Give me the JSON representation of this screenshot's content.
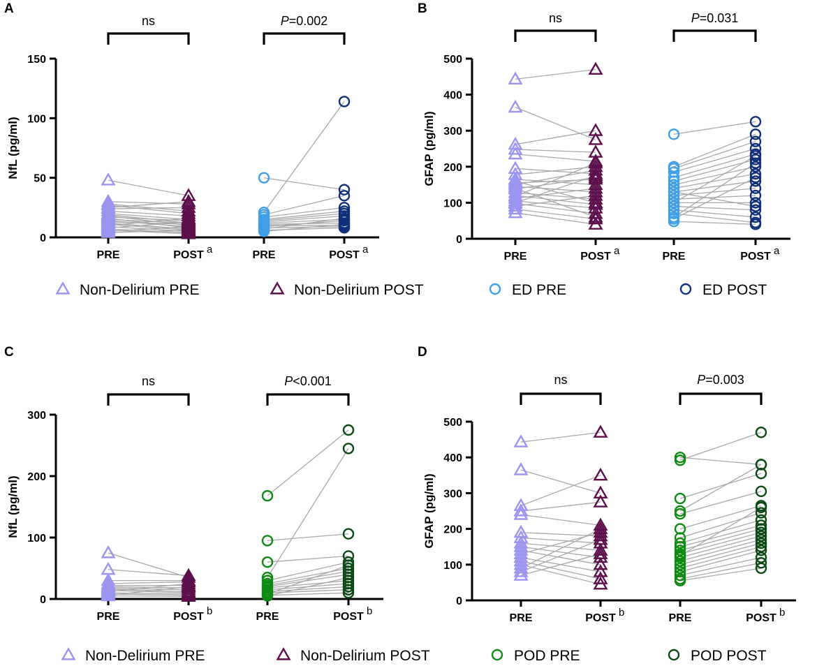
{
  "figure": "4-panel paired before/after scatter",
  "colors": {
    "nd_pre": "#9b95f0",
    "nd_post": "#5c0f4b",
    "ed_pre": "#3f9fe8",
    "ed_post": "#0f2f78",
    "pod_pre": "#0e8a12",
    "pod_post": "#0a4a12",
    "line": "#a9a9a9",
    "axis": "#000000"
  },
  "legends": [
    {
      "items": [
        {
          "label": "Non-Delirium PRE",
          "marker": "triangle",
          "color": "#9b95f0"
        },
        {
          "label": "Non-Delirium POST",
          "marker": "triangle",
          "color": "#5c0f4b"
        },
        {
          "label": "ED PRE",
          "marker": "circle",
          "color": "#3f9fe8"
        },
        {
          "label": "ED POST",
          "marker": "circle",
          "color": "#0f2f78"
        }
      ]
    },
    {
      "items": [
        {
          "label": "Non-Delirium PRE",
          "marker": "triangle",
          "color": "#9b95f0"
        },
        {
          "label": "Non-Delirium POST",
          "marker": "triangle",
          "color": "#5c0f4b"
        },
        {
          "label": "POD PRE",
          "marker": "circle",
          "color": "#0e8a12"
        },
        {
          "label": "POD POST",
          "marker": "circle",
          "color": "#0a4a12"
        }
      ]
    }
  ],
  "chart_data": [
    {
      "panel": "A",
      "type": "scatter",
      "ylabel": "NfL (pg/ml)",
      "ylim": [
        0,
        150
      ],
      "yticks": [
        0,
        50,
        100,
        150
      ],
      "categories": [
        "PRE",
        "POST",
        "PRE",
        "POST"
      ],
      "category_superscripts": [
        "",
        "a",
        "",
        "a"
      ],
      "groups": [
        {
          "name": "Non-Delirium",
          "brackets_label": "ns",
          "pre_color": "#9b95f0",
          "post_color": "#5c0f4b",
          "marker": "triangle",
          "pairs": [
            [
              48,
              35
            ],
            [
              30,
              28
            ],
            [
              28,
              22
            ],
            [
              27,
              20
            ],
            [
              25,
              30
            ],
            [
              24,
              25
            ],
            [
              22,
              18
            ],
            [
              20,
              15
            ],
            [
              19,
              12
            ],
            [
              18,
              10
            ],
            [
              17,
              14
            ],
            [
              16,
              8
            ],
            [
              15,
              12
            ],
            [
              14,
              9
            ],
            [
              13,
              11
            ],
            [
              12,
              7
            ],
            [
              11,
              6
            ],
            [
              10,
              16
            ],
            [
              9,
              5
            ],
            [
              8,
              13
            ],
            [
              7,
              4
            ],
            [
              6,
              3
            ],
            [
              5,
              9
            ],
            [
              4,
              6
            ]
          ]
        },
        {
          "name": "ED",
          "brackets_label": "P=0.002",
          "pre_color": "#3f9fe8",
          "post_color": "#0f2f78",
          "marker": "circle",
          "pairs": [
            [
              50,
              40
            ],
            [
              21,
              114
            ],
            [
              19,
              35
            ],
            [
              17,
              25
            ],
            [
              15,
              22
            ],
            [
              14,
              20
            ],
            [
              13,
              18
            ],
            [
              12,
              15
            ],
            [
              11,
              12
            ],
            [
              10,
              10
            ],
            [
              9,
              14
            ],
            [
              8,
              9
            ],
            [
              7,
              16
            ],
            [
              6,
              8
            ],
            [
              5,
              11
            ]
          ]
        }
      ]
    },
    {
      "panel": "B",
      "type": "scatter",
      "ylabel": "GFAP (pg/ml)",
      "ylim": [
        0,
        500
      ],
      "yticks": [
        0,
        100,
        200,
        300,
        400,
        500
      ],
      "categories": [
        "PRE",
        "POST",
        "PRE",
        "POST"
      ],
      "category_superscripts": [
        "",
        "a",
        "",
        "a"
      ],
      "groups": [
        {
          "name": "Non-Delirium",
          "brackets_label": "ns",
          "pre_color": "#9b95f0",
          "post_color": "#5c0f4b",
          "marker": "triangle",
          "pairs": [
            [
              443,
              470
            ],
            [
              365,
              275
            ],
            [
              262,
              300
            ],
            [
              248,
              240
            ],
            [
              235,
              215
            ],
            [
              195,
              180
            ],
            [
              178,
              200
            ],
            [
              165,
              150
            ],
            [
              155,
              165
            ],
            [
              145,
              130
            ],
            [
              138,
              170
            ],
            [
              128,
              110
            ],
            [
              120,
              95
            ],
            [
              112,
              140
            ],
            [
              105,
              85
            ],
            [
              98,
              70
            ],
            [
              90,
              120
            ],
            [
              82,
              55
            ],
            [
              72,
              40
            ],
            [
              150,
              190
            ],
            [
              160,
              100
            ],
            [
              140,
              60
            ],
            [
              118,
              210
            ],
            [
              100,
              175
            ]
          ]
        },
        {
          "name": "ED",
          "brackets_label": "P=0.031",
          "pre_color": "#3f9fe8",
          "post_color": "#0f2f78",
          "marker": "circle",
          "pairs": [
            [
              290,
              325
            ],
            [
              200,
              290
            ],
            [
              195,
              270
            ],
            [
              185,
              250
            ],
            [
              170,
              235
            ],
            [
              160,
              220
            ],
            [
              150,
              200
            ],
            [
              140,
              180
            ],
            [
              130,
              160
            ],
            [
              120,
              140
            ],
            [
              110,
              120
            ],
            [
              100,
              100
            ],
            [
              90,
              80
            ],
            [
              80,
              60
            ],
            [
              70,
              45
            ],
            [
              60,
              210
            ],
            [
              55,
              170
            ],
            [
              48,
              40
            ],
            [
              100,
              230
            ],
            [
              130,
              90
            ]
          ]
        }
      ]
    },
    {
      "panel": "C",
      "type": "scatter",
      "ylabel": "NfL (pg/ml)",
      "ylim": [
        0,
        300
      ],
      "yticks": [
        0,
        100,
        200,
        300
      ],
      "categories": [
        "PRE",
        "POST",
        "PRE",
        "POST"
      ],
      "category_superscripts": [
        "",
        "b",
        "",
        "b"
      ],
      "groups": [
        {
          "name": "Non-Delirium",
          "brackets_label": "ns",
          "pre_color": "#9b95f0",
          "post_color": "#5c0f4b",
          "marker": "triangle",
          "pairs": [
            [
              75,
              35
            ],
            [
              48,
              38
            ],
            [
              30,
              30
            ],
            [
              25,
              28
            ],
            [
              22,
              22
            ],
            [
              20,
              18
            ],
            [
              18,
              15
            ],
            [
              16,
              12
            ],
            [
              14,
              10
            ],
            [
              12,
              25
            ],
            [
              10,
              8
            ],
            [
              8,
              6
            ],
            [
              6,
              20
            ],
            [
              5,
              4
            ]
          ]
        },
        {
          "name": "POD",
          "brackets_label": "P<0.001",
          "pre_color": "#0e8a12",
          "post_color": "#0a4a12",
          "marker": "circle",
          "pairs": [
            [
              168,
              275
            ],
            [
              95,
              106
            ],
            [
              60,
              70
            ],
            [
              35,
              245
            ],
            [
              30,
              60
            ],
            [
              25,
              50
            ],
            [
              22,
              45
            ],
            [
              20,
              40
            ],
            [
              18,
              30
            ],
            [
              15,
              25
            ],
            [
              12,
              20
            ],
            [
              10,
              15
            ],
            [
              8,
              55
            ],
            [
              6,
              10
            ],
            [
              5,
              35
            ]
          ]
        }
      ]
    },
    {
      "panel": "D",
      "type": "scatter",
      "ylabel": "GFAP (pg/ml)",
      "ylim": [
        0,
        500
      ],
      "yticks": [
        0,
        100,
        200,
        300,
        400,
        500
      ],
      "categories": [
        "PRE",
        "POST",
        "PRE",
        "POST"
      ],
      "category_superscripts": [
        "",
        "b",
        "",
        "b"
      ],
      "groups": [
        {
          "name": "Non-Delirium",
          "brackets_label": "ns",
          "pre_color": "#9b95f0",
          "post_color": "#5c0f4b",
          "marker": "triangle",
          "pairs": [
            [
              443,
              470
            ],
            [
              365,
              300
            ],
            [
              265,
              350
            ],
            [
              250,
              275
            ],
            [
              240,
              210
            ],
            [
              190,
              180
            ],
            [
              175,
              160
            ],
            [
              160,
              140
            ],
            [
              150,
              120
            ],
            [
              140,
              100
            ],
            [
              130,
              190
            ],
            [
              120,
              80
            ],
            [
              110,
              60
            ],
            [
              100,
              45
            ],
            [
              90,
              200
            ],
            [
              80,
              170
            ],
            [
              70,
              130
            ]
          ]
        },
        {
          "name": "POD",
          "brackets_label": "P=0.003",
          "pre_color": "#0e8a12",
          "post_color": "#0a4a12",
          "marker": "circle",
          "pairs": [
            [
              400,
              380
            ],
            [
              392,
              470
            ],
            [
              285,
              355
            ],
            [
              250,
              380
            ],
            [
              242,
              305
            ],
            [
              200,
              265
            ],
            [
              175,
              245
            ],
            [
              160,
              225
            ],
            [
              150,
              210
            ],
            [
              140,
              200
            ],
            [
              130,
              190
            ],
            [
              120,
              180
            ],
            [
              110,
              170
            ],
            [
              100,
              160
            ],
            [
              90,
              150
            ],
            [
              80,
              140
            ],
            [
              70,
              120
            ],
            [
              60,
              105
            ],
            [
              55,
              90
            ],
            [
              125,
              260
            ]
          ]
        }
      ]
    }
  ]
}
